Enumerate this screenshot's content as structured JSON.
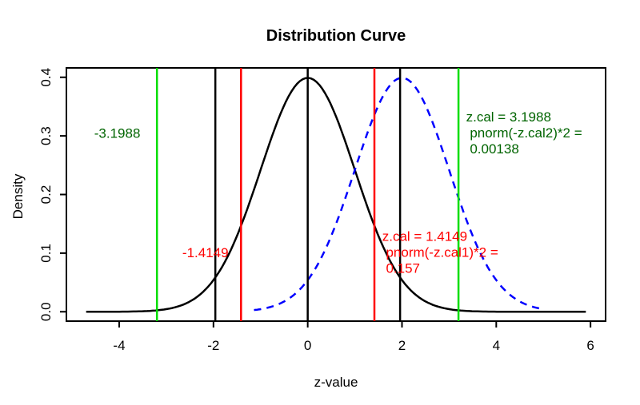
{
  "chart_data": {
    "type": "line",
    "title": "Distribution Curve",
    "xlabel": "z-value",
    "ylabel": "Density",
    "xlim": [
      -5.12,
      6.32
    ],
    "ylim": [
      -0.016,
      0.416
    ],
    "grid": false,
    "legend": null,
    "x_ticks": [
      {
        "value": -4,
        "label": "-4"
      },
      {
        "value": -2,
        "label": "-2"
      },
      {
        "value": 0,
        "label": "0"
      },
      {
        "value": 2,
        "label": "2"
      },
      {
        "value": 4,
        "label": "4"
      },
      {
        "value": 6,
        "label": "6"
      }
    ],
    "y_ticks": [
      {
        "value": 0.0,
        "label": "0.0"
      },
      {
        "value": 0.1,
        "label": "0.1"
      },
      {
        "value": 0.2,
        "label": "0.2"
      },
      {
        "value": 0.3,
        "label": "0.3"
      },
      {
        "value": 0.4,
        "label": "0.4"
      }
    ],
    "series": [
      {
        "name": "null-distribution",
        "kind": "normal-density",
        "mean": 0,
        "sd": 1,
        "x_from": -4.7,
        "x_to": 5.9,
        "peak_density": 0.4,
        "color": "#000000",
        "line_style": "solid"
      },
      {
        "name": "alternative-distribution",
        "kind": "normal-density",
        "mean": 2,
        "sd": 1,
        "x_from": -1.14,
        "x_to": 4.93,
        "peak_density": 0.4,
        "color": "#0000FF",
        "line_style": "dashed"
      }
    ],
    "vlines": [
      {
        "x": -3.1988,
        "color": "#00DE00",
        "name": "vline-neg-z-cal2"
      },
      {
        "x": -1.96,
        "color": "#000000",
        "name": "vline-neg-critical"
      },
      {
        "x": -1.4149,
        "color": "#FF0000",
        "name": "vline-neg-z-cal1"
      },
      {
        "x": 0,
        "color": "#000000",
        "name": "vline-mean"
      },
      {
        "x": 1.4149,
        "color": "#FF0000",
        "name": "vline-z-cal1"
      },
      {
        "x": 1.96,
        "color": "#000000",
        "name": "vline-critical"
      },
      {
        "x": 3.1988,
        "color": "#00DE00",
        "name": "vline-z-cal2"
      }
    ],
    "annotations": [
      {
        "name": "annotation-neg-z-cal2",
        "lines": [
          "-3.1988"
        ],
        "x": -4.53,
        "y": 0.305,
        "color": "#006400"
      },
      {
        "name": "annotation-neg-z-cal1",
        "lines": [
          "-1.4149"
        ],
        "x": -2.66,
        "y": 0.101,
        "color": "#FF0000"
      },
      {
        "name": "annotation-z-cal1-result",
        "lines": [
          "z.cal = 1.4149",
          " pnorm(-z.cal1)*2 =",
          " 0.157"
        ],
        "x": 1.58,
        "y": 0.129,
        "color": "#FF0000"
      },
      {
        "name": "annotation-z-cal2-result",
        "lines": [
          "z.cal = 3.1988",
          " pnorm(-z.cal2)*2 =",
          " 0.00138"
        ],
        "x": 3.36,
        "y": 0.333,
        "color": "#006400"
      }
    ],
    "colors": {
      "null_curve": "#000000",
      "alt_curve": "#0000FF",
      "green_line": "#00DE00",
      "green_text": "#006400",
      "red": "#FF0000"
    }
  }
}
